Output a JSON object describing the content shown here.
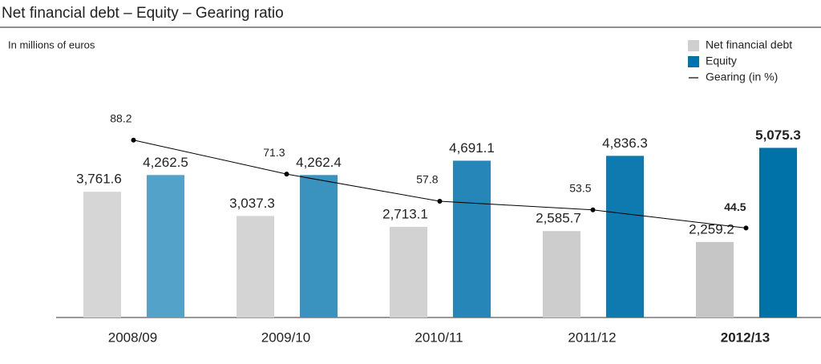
{
  "chart_data": {
    "type": "bar_line",
    "title": "Net financial debt – Equity – Gearing ratio",
    "subtitle": "In millions of euros",
    "categories": [
      "2008/09",
      "2009/10",
      "2010/11",
      "2011/12",
      "2012/13"
    ],
    "ylim": [
      0,
      7100
    ],
    "y2lim": [
      0,
      118
    ],
    "legend": "top-right",
    "series": [
      {
        "name": "Net financial debt",
        "type": "bar",
        "color": "#cfcfcf",
        "colors": [
          "#d6d6d6",
          "#d4d4d4",
          "#d2d2d2",
          "#cdcdcd",
          "#c6c6c6"
        ],
        "label_color": "#c4c4c4",
        "values": [
          3761.6,
          3037.3,
          2713.1,
          2585.7,
          2259.2
        ],
        "value_labels": [
          "3,761.6",
          "3,037.3",
          "2,713.1",
          "2,585.7",
          "2,259.2"
        ]
      },
      {
        "name": "Equity",
        "type": "bar",
        "color": "#0074aa",
        "colors": [
          "#52a2ca",
          "#3a92be",
          "#2586b7",
          "#0f7aaf",
          "#0072a8"
        ],
        "label_color": "#3d8fc0",
        "values": [
          4262.5,
          4262.4,
          4691.1,
          4836.3,
          5075.3
        ],
        "value_labels": [
          "4,262.5",
          "4,262.4",
          "4,691.1",
          "4,836.3",
          "5,075.3"
        ]
      },
      {
        "name": "Gearing (in %)",
        "type": "line",
        "axis": "y2",
        "color": "#000000",
        "values": [
          88.2,
          71.3,
          57.8,
          53.5,
          44.5
        ]
      }
    ]
  }
}
